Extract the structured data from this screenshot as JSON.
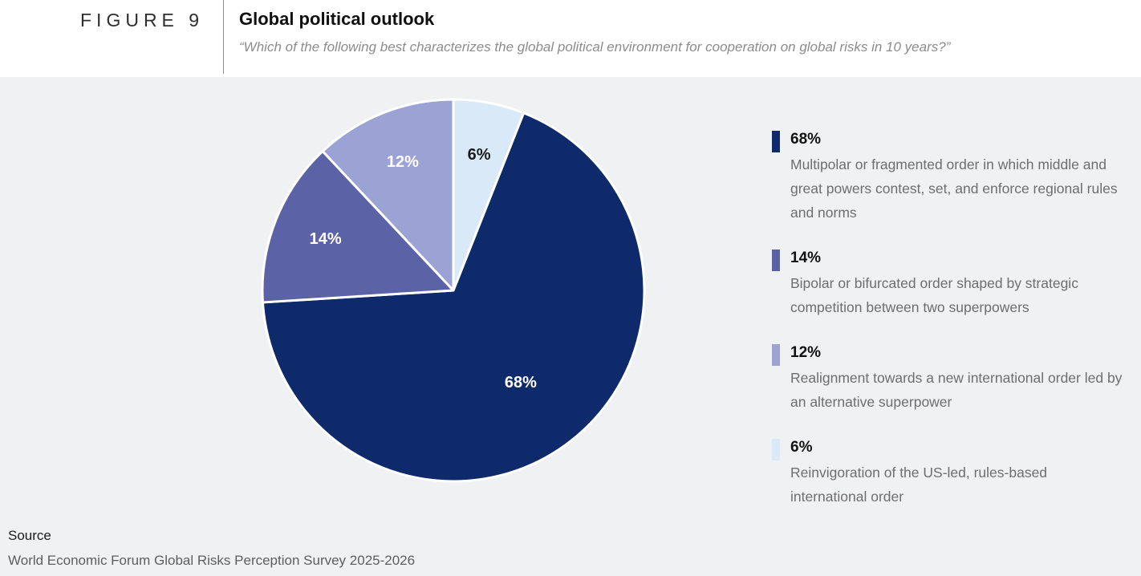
{
  "figure": {
    "tag": "FIGURE 9",
    "title": "Global political outlook",
    "subtitle": "“Which of the following best characterizes the global political environment for cooperation on global risks in 10 years?”"
  },
  "chart_data": {
    "type": "pie",
    "title": "Global political outlook",
    "rotation_deg": 21.6,
    "legend_position": "right",
    "slices": [
      {
        "label": "68%",
        "value": 68,
        "color": "#0e2a6a",
        "text_color": "#ffffff",
        "description": "Multipolar or fragmented order in which middle and great powers contest, set, and enforce regional rules and norms"
      },
      {
        "label": "14%",
        "value": 14,
        "color": "#5b63a6",
        "text_color": "#ffffff",
        "description": "Bipolar or bifurcated order shaped by strategic competition between two superpowers"
      },
      {
        "label": "12%",
        "value": 12,
        "color": "#9aa3d4",
        "text_color": "#ffffff",
        "description": "Realignment towards a new international order led by an alternative superpower"
      },
      {
        "label": "6%",
        "value": 6,
        "color": "#d9e9f8",
        "text_color": "#1a1a1a",
        "description": "Reinvigoration of the US-led, rules-based international order"
      }
    ]
  },
  "footer": {
    "source_label": "Source",
    "source_text": "World Economic Forum Global Risks Perception Survey 2025-2026"
  },
  "colors": {
    "background": "#f0f1f2",
    "header_background": "#ffffff",
    "slice_border": "#ffffff"
  }
}
